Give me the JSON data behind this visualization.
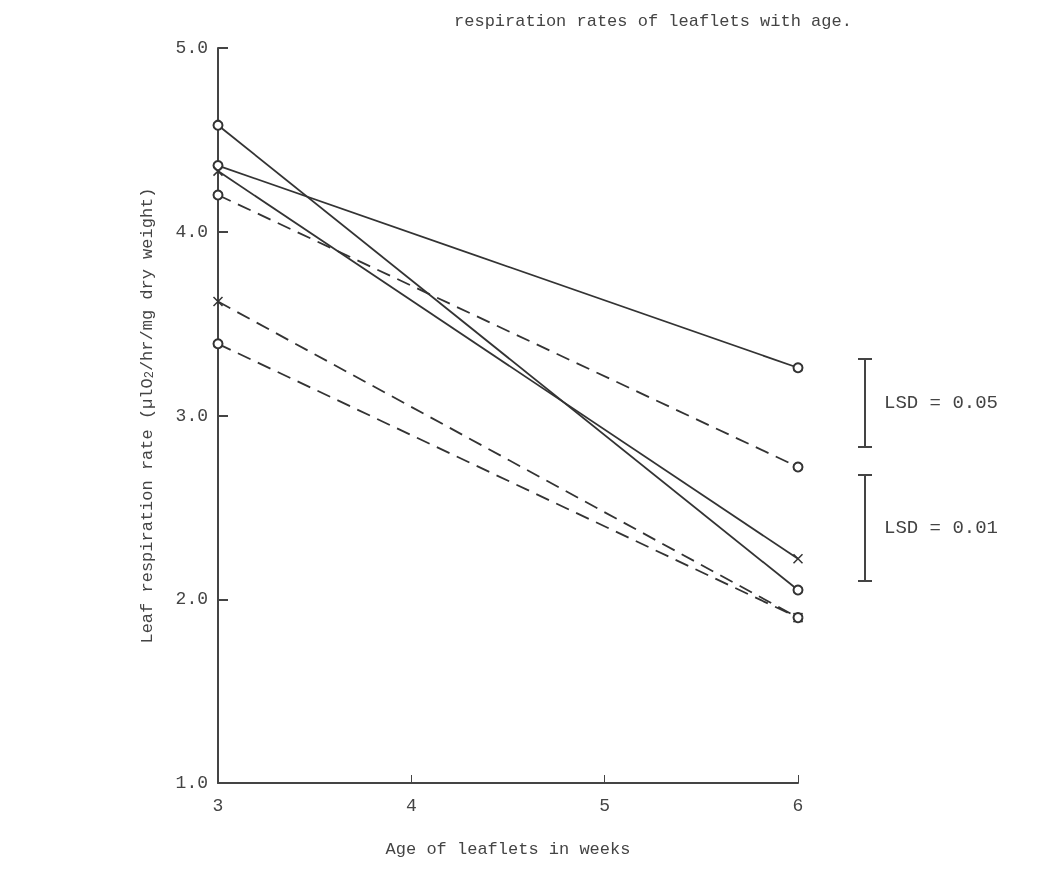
{
  "chart_data": {
    "type": "line",
    "title": "respiration rates of leaflets with age.",
    "xlabel": "Age of leaflets in weeks",
    "ylabel": "Leaf respiration rate (µlO$_{2}$/hr/mg dry weight)",
    "x": [
      3,
      6
    ],
    "series": [
      {
        "color": "#333333",
        "values": [
          4.58,
          2.05
        ],
        "marker": "circle",
        "line_style": "solid"
      },
      {
        "color": "#333333",
        "values": [
          4.36,
          3.26
        ],
        "marker": "circle",
        "line_style": "solid"
      },
      {
        "color": "#333333",
        "values": [
          4.33,
          2.22
        ],
        "marker": "cross",
        "line_style": "solid"
      },
      {
        "color": "#333333",
        "values": [
          4.2,
          2.72
        ],
        "marker": "circle",
        "line_style": "dashed"
      },
      {
        "color": "#333333",
        "values": [
          3.62,
          1.9
        ],
        "marker": "cross",
        "line_style": "dashed"
      },
      {
        "color": "#333333",
        "values": [
          3.39,
          1.9
        ],
        "marker": "circle",
        "line_style": "dashed"
      }
    ],
    "xlim": [
      3,
      6
    ],
    "xticks": [
      3,
      4,
      5,
      6
    ],
    "ylim": [
      1,
      5
    ],
    "yticks": [
      {
        "value": 1,
        "label": "1.0"
      },
      {
        "value": 2,
        "label": "2.0"
      },
      {
        "value": 3,
        "label": "3.0"
      },
      {
        "value": 4,
        "label": "4.0"
      },
      {
        "value": 5,
        "label": "5.0"
      }
    ],
    "grid": false,
    "annotations": [
      "LSD = 0.05",
      "LSD = 0.01"
    ]
  }
}
